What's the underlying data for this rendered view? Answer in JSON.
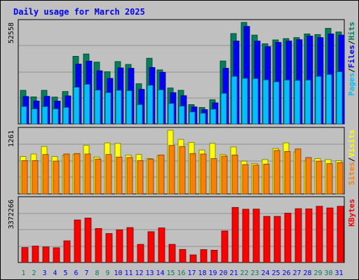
{
  "colors": {
    "hits": "#00805c",
    "files": "#0000ff",
    "pages": "#00c0ff",
    "visits": "#ffff00",
    "sites": "#ff8000",
    "kbytes": "#ff0000",
    "title": "#0000ff",
    "weekend_day": "#00805c",
    "weekday": "#0000ff"
  },
  "chart_data": [
    {
      "type": "bar",
      "title": "Daily usage for March 2025",
      "categories": [
        "1",
        "2",
        "3",
        "4",
        "5",
        "6",
        "7",
        "8",
        "9",
        "10",
        "11",
        "12",
        "13",
        "14",
        "15",
        "16",
        "17",
        "18",
        "19",
        "20",
        "21",
        "22",
        "23",
        "24",
        "25",
        "26",
        "27",
        "28",
        "29",
        "30",
        "31"
      ],
      "weekend_days": [
        "1",
        "2",
        "8",
        "9",
        "15",
        "16",
        "22",
        "23",
        "29",
        "30"
      ],
      "ymax_label": "52558",
      "ylim": [
        0,
        52558
      ],
      "axis_label_parts": [
        "Pages",
        "/",
        "Files",
        "/",
        "Hits"
      ],
      "series": [
        {
          "name": "Hits",
          "values": [
            17400,
            14000,
            17400,
            13900,
            16800,
            35000,
            36200,
            32000,
            27000,
            32300,
            30800,
            20800,
            34000,
            28000,
            18600,
            17400,
            10000,
            8500,
            12500,
            32600,
            46800,
            52558,
            46000,
            41500,
            43500,
            44200,
            44700,
            46600,
            46300,
            49500,
            47600
          ]
        },
        {
          "name": "Files",
          "values": [
            14200,
            11900,
            14300,
            11800,
            14500,
            31000,
            32500,
            27500,
            23600,
            29000,
            28800,
            17900,
            29200,
            26700,
            16200,
            14600,
            8800,
            7400,
            10900,
            28800,
            42900,
            50500,
            42900,
            40000,
            42200,
            42900,
            43600,
            45500,
            44700,
            46600,
            46000
          ]
        },
        {
          "name": "Pages",
          "values": [
            9000,
            7800,
            9000,
            7800,
            8500,
            19000,
            20500,
            17500,
            16200,
            17400,
            17200,
            10000,
            20000,
            17600,
            10600,
            9200,
            6200,
            5500,
            7600,
            15800,
            24600,
            23600,
            23500,
            22800,
            21800,
            22700,
            22500,
            22700,
            24600,
            25600,
            27000
          ]
        }
      ]
    },
    {
      "type": "bar",
      "ymax_label": "1261",
      "ylim": [
        0,
        1261
      ],
      "axis_label_parts": [
        "Sites",
        "/",
        "Visits"
      ],
      "series": [
        {
          "name": "Visits",
          "values": [
            740,
            790,
            940,
            740,
            760,
            780,
            960,
            730,
            1010,
            1000,
            770,
            780,
            700,
            760,
            1261,
            1080,
            1020,
            870,
            1000,
            780,
            930,
            650,
            600,
            680,
            900,
            1010,
            830,
            650,
            700,
            680,
            660
          ]
        },
        {
          "name": "Sites",
          "values": [
            660,
            660,
            780,
            650,
            790,
            800,
            790,
            690,
            780,
            730,
            720,
            660,
            690,
            770,
            960,
            940,
            800,
            790,
            700,
            750,
            770,
            580,
            570,
            590,
            860,
            840,
            890,
            720,
            650,
            600,
            620
          ]
        }
      ]
    },
    {
      "type": "bar",
      "ymax_label": "3372266",
      "ylim": [
        0,
        3372266
      ],
      "axis_label_parts": [
        "KBytes"
      ],
      "series": [
        {
          "name": "KBytes",
          "values": [
            800000,
            880000,
            830000,
            790000,
            1160000,
            2280000,
            2380000,
            1820000,
            1550000,
            1750000,
            1870000,
            970000,
            1650000,
            1850000,
            970000,
            700000,
            410000,
            690000,
            660000,
            1690000,
            2950000,
            2850000,
            2860000,
            2470000,
            2470000,
            2640000,
            2880000,
            2870000,
            3010000,
            2920000,
            3010000
          ]
        }
      ]
    }
  ]
}
